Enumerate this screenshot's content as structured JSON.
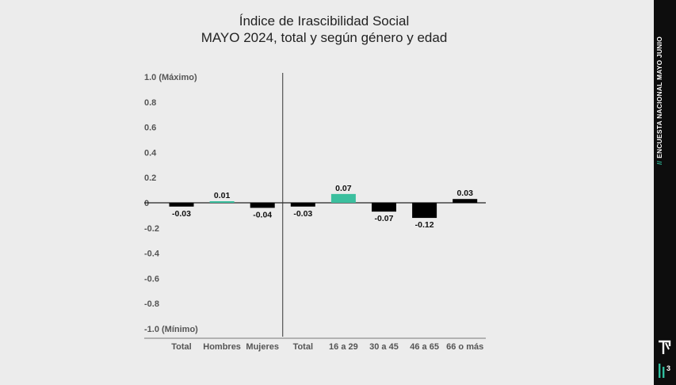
{
  "chart_data": {
    "type": "bar",
    "title": "Índice de Irascibilidad Social",
    "subtitle": "MAYO 2024, total y según género y edad",
    "categories": [
      "Total",
      "Hombres",
      "Mujeres",
      "Total",
      "16 a 29",
      "30 a 45",
      "46 a 65",
      "66 o más"
    ],
    "values": [
      -0.03,
      0.01,
      -0.04,
      -0.03,
      0.07,
      -0.07,
      -0.12,
      0.03
    ],
    "value_labels": [
      "-0.03",
      "0.01",
      "-0.04",
      "-0.03",
      "0.07",
      "-0.07",
      "-0.12",
      "0.03"
    ],
    "bar_colors": [
      "#000000",
      "#3bbf9e",
      "#000000",
      "#000000",
      "#3bbf9e",
      "#000000",
      "#000000",
      "#000000"
    ],
    "yticks": [
      1.0,
      0.8,
      0.6,
      0.4,
      0.2,
      0,
      -0.2,
      -0.4,
      -0.6,
      -0.8,
      -1.0
    ],
    "ytick_labels": [
      "1.0 (Máximo)",
      "0.8",
      "0.6",
      "0.4",
      "0.2",
      "0",
      "-0.2",
      "-0.4",
      "-0.6",
      "-0.8",
      "-1.0 (Mínimo)"
    ],
    "ylim": [
      -1.0,
      1.0
    ],
    "group_divider_after": 2,
    "xlabel": "",
    "ylabel": ""
  },
  "sidebar": {
    "prefix": "//",
    "label": "ENCUESTA NACIONAL MAYO JUNIO",
    "logo_number": "3"
  },
  "colors": {
    "accent": "#3bbf9e",
    "negative": "#000000",
    "background": "#ececec"
  }
}
